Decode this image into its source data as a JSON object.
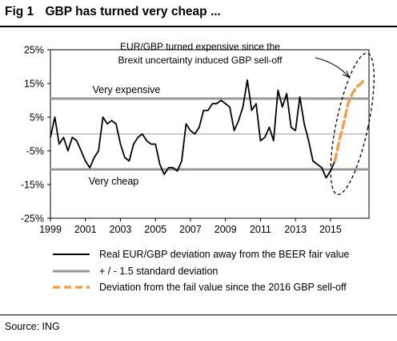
{
  "header": {
    "fig_label": "Fig 1",
    "title": "GBP has turned very cheap ..."
  },
  "source": "Source: ING",
  "colors": {
    "actual": "#000000",
    "bands": "#999999",
    "projection": "#F0A04B",
    "ellipse": "#000000"
  },
  "chart_data": {
    "type": "line",
    "title": "GBP has turned very cheap ...",
    "xlabel": "",
    "ylabel": "",
    "xlim": [
      1999.0,
      2017.2
    ],
    "ylim": [
      -25,
      25
    ],
    "x_ticks": [
      "1999",
      "2001",
      "2003",
      "2005",
      "2007",
      "2009",
      "2011",
      "2013",
      "2015"
    ],
    "y_ticks": [
      "25%",
      "15%",
      "5%",
      "-5%",
      "-15%",
      "-25%"
    ],
    "grid": false,
    "legend_position": "bottom",
    "bands": [
      {
        "name": "+ / - 1.5 standard deviation",
        "upper": 10.5,
        "lower": -10.5,
        "upper_label": "Very expensive",
        "lower_label": "Very cheap"
      }
    ],
    "zero_line": 0,
    "annotation": {
      "line1": "EUR/GBP turned expensive since the",
      "line2": "Brexit uncertainty induced GBP sell-off"
    },
    "series": [
      {
        "name": "Real EUR/GBP deviation away from the BEER fair value",
        "style": "solid",
        "x": [
          1999.0,
          1999.25,
          1999.5,
          1999.75,
          2000.0,
          2000.25,
          2000.5,
          2000.75,
          2001.0,
          2001.25,
          2001.5,
          2001.75,
          2002.0,
          2002.25,
          2002.5,
          2002.75,
          2003.0,
          2003.25,
          2003.5,
          2003.75,
          2004.0,
          2004.25,
          2004.5,
          2004.75,
          2005.0,
          2005.25,
          2005.5,
          2005.75,
          2006.0,
          2006.25,
          2006.5,
          2006.75,
          2007.0,
          2007.25,
          2007.5,
          2007.75,
          2008.0,
          2008.25,
          2008.5,
          2008.75,
          2009.0,
          2009.25,
          2009.5,
          2009.75,
          2010.0,
          2010.25,
          2010.5,
          2010.75,
          2011.0,
          2011.25,
          2011.5,
          2011.75,
          2012.0,
          2012.25,
          2012.5,
          2012.75,
          2013.0,
          2013.25,
          2013.5,
          2013.75,
          2014.0,
          2014.25,
          2014.5,
          2014.75,
          2015.0,
          2015.25
        ],
        "values": [
          -1,
          5,
          -3,
          -1,
          -5,
          -1,
          -2,
          -5,
          -8,
          -10,
          -7,
          -5,
          5,
          3,
          4,
          3,
          -3,
          -7,
          -8,
          -3,
          -1,
          0,
          -2,
          -3,
          -3,
          -9,
          -12,
          -10,
          -10,
          -11,
          -8,
          3,
          1,
          0,
          2,
          7,
          7,
          9,
          9,
          10,
          9,
          8,
          1,
          4,
          8,
          16,
          7,
          9,
          -2,
          -1,
          2,
          -2,
          13,
          8,
          12,
          2,
          1,
          11,
          3,
          -2,
          -8,
          -9,
          -10,
          -13,
          -11,
          -8
        ]
      },
      {
        "name": "Deviation from the fail value since the 2016 GBP sell-off",
        "style": "dashed",
        "x": [
          2015.25,
          2015.5,
          2015.75,
          2016.0,
          2016.25,
          2016.5,
          2016.75,
          2016.9
        ],
        "values": [
          -8,
          -2,
          3,
          9,
          12,
          14,
          15,
          16
        ]
      }
    ]
  }
}
